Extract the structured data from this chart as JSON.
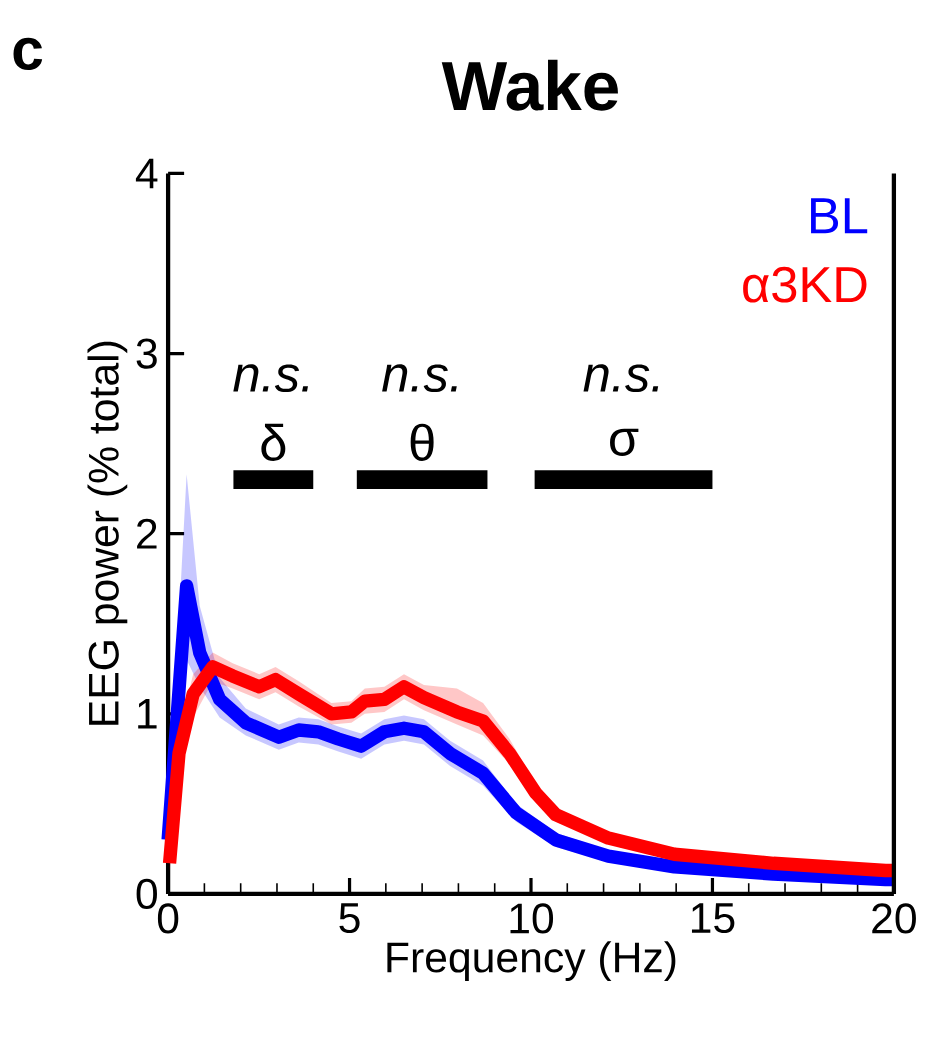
{
  "chart_data": {
    "type": "line",
    "title": "Wake",
    "xlabel": "Frequency (Hz)",
    "ylabel": "EEG power (% total)",
    "annotations": [
      "c",
      "n.s.",
      "n.s.",
      "n.s.",
      "δ",
      "θ",
      "σ"
    ],
    "series": [
      {
        "name": "BL",
        "color": "#0000ff",
        "x": [
          0,
          0.51,
          0.87,
          1.42,
          2.14,
          3.05,
          3.6,
          4.14,
          4.69,
          5.32,
          5.96,
          6.5,
          7.05,
          7.77,
          8.68,
          9.59,
          10.68,
          12.13,
          13.95,
          16.68,
          19.77,
          20
        ],
        "values": [
          0.3,
          1.71,
          1.34,
          1.08,
          0.95,
          0.87,
          0.91,
          0.9,
          0.86,
          0.82,
          0.9,
          0.92,
          0.9,
          0.78,
          0.67,
          0.45,
          0.3,
          0.21,
          0.15,
          0.11,
          0.08,
          0.08
        ],
        "lower": [
          0.2,
          1.3,
          1.15,
          0.98,
          0.88,
          0.8,
          0.84,
          0.83,
          0.79,
          0.75,
          0.83,
          0.85,
          0.83,
          0.71,
          0.6,
          0.4,
          0.26,
          0.18,
          0.12,
          0.09,
          0.06,
          0.06
        ],
        "upper": [
          0.4,
          2.33,
          1.6,
          1.2,
          1.03,
          0.94,
          0.98,
          0.97,
          0.93,
          0.89,
          0.97,
          0.99,
          0.97,
          0.85,
          0.74,
          0.5,
          0.34,
          0.24,
          0.18,
          0.13,
          0.1,
          0.1
        ]
      },
      {
        "name": "α3KD",
        "color": "#ff0000",
        "x": [
          0.04,
          0.3,
          0.69,
          1.23,
          1.78,
          2.51,
          2.96,
          3.6,
          4.5,
          5.05,
          5.42,
          5.96,
          6.5,
          7.05,
          7.96,
          8.68,
          9.41,
          10.13,
          10.68,
          12.13,
          13.95,
          16.68,
          19.77,
          20
        ],
        "values": [
          0.17,
          0.78,
          1.11,
          1.26,
          1.21,
          1.15,
          1.19,
          1.11,
          1.0,
          1.01,
          1.07,
          1.08,
          1.15,
          1.09,
          1.01,
          0.96,
          0.78,
          0.56,
          0.44,
          0.31,
          0.22,
          0.17,
          0.13,
          0.13
        ],
        "lower": [
          0.12,
          0.65,
          0.98,
          1.18,
          1.14,
          1.08,
          1.12,
          1.04,
          0.94,
          0.95,
          1.0,
          1.01,
          1.08,
          1.02,
          0.94,
          0.88,
          0.72,
          0.51,
          0.4,
          0.28,
          0.19,
          0.15,
          0.11,
          0.11
        ],
        "upper": [
          0.22,
          0.9,
          1.22,
          1.34,
          1.28,
          1.22,
          1.26,
          1.18,
          1.06,
          1.07,
          1.14,
          1.15,
          1.22,
          1.16,
          1.14,
          1.06,
          0.86,
          0.61,
          0.48,
          0.34,
          0.25,
          0.19,
          0.15,
          0.15
        ]
      },
      {
        "color": "#000000",
        "x": [
          1.8,
          4.0,
          4.6,
          5.2,
          8.8,
          9.4,
          10.1,
          15.0
        ],
        "values": [
          2.3,
          2.3,
          null,
          2.3,
          2.3,
          null,
          2.3,
          2.3
        ]
      }
    ],
    "xlim": [
      0,
      20
    ],
    "ylim": [
      0,
      4
    ],
    "xticks": [
      0,
      {
        "value": 1,
        "label": null
      },
      {
        "value": 2,
        "label": null
      },
      {
        "value": 3,
        "label": null
      },
      {
        "value": 4,
        "label": null
      },
      5,
      {
        "value": 6,
        "label": null
      },
      {
        "value": 7,
        "label": null
      },
      {
        "value": 8,
        "label": null
      },
      {
        "value": 9,
        "label": null
      },
      10,
      {
        "value": 11,
        "label": null
      },
      {
        "value": 12,
        "label": null
      },
      {
        "value": 13,
        "label": null
      },
      {
        "value": 14,
        "label": null
      },
      15,
      {
        "value": 16,
        "label": null
      },
      {
        "value": 17,
        "label": null
      },
      {
        "value": 18,
        "label": null
      },
      {
        "value": 19,
        "label": null
      },
      20
    ],
    "yticks": [
      0,
      1,
      2,
      3,
      4
    ],
    "legend": "top right",
    "grid": false
  }
}
